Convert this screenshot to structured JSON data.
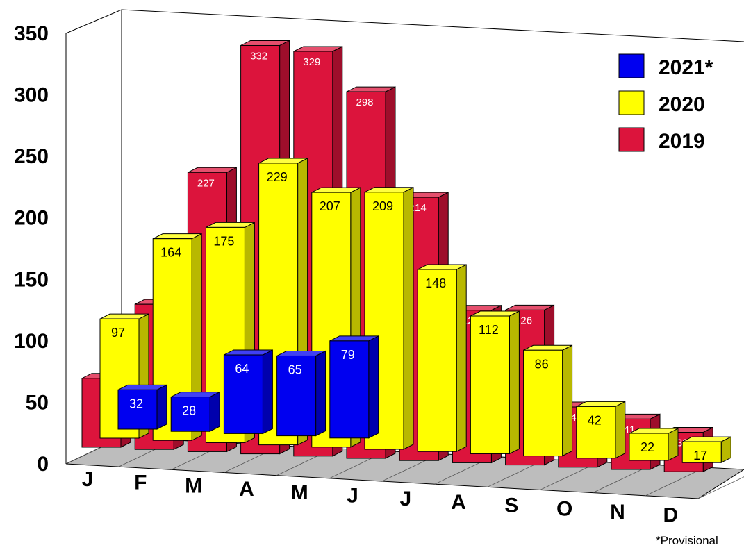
{
  "chart_data": {
    "type": "bar",
    "categories": [
      "J",
      "F",
      "M",
      "A",
      "M",
      "J",
      "J",
      "A",
      "S",
      "O",
      "N",
      "D"
    ],
    "series": [
      {
        "name": "2021*",
        "color": "#0000f0",
        "values": [
          32,
          28,
          64,
          65,
          79,
          null,
          null,
          null,
          null,
          null,
          null,
          null
        ]
      },
      {
        "name": "2020",
        "color": "#ffff00",
        "values": [
          97,
          164,
          175,
          229,
          207,
          209,
          148,
          112,
          86,
          42,
          22,
          17
        ]
      },
      {
        "name": "2019",
        "color": "#dc143c",
        "values": [
          56,
          118,
          227,
          332,
          329,
          298,
          214,
          124,
          126,
          49,
          41,
          32
        ]
      }
    ],
    "data_labels": {
      "2021*": [
        "32",
        "28",
        "64",
        "65",
        "79",
        "",
        "",
        "",
        "",
        "",
        "",
        ""
      ],
      "2020": [
        "97",
        "164",
        "175",
        "229",
        "207",
        "209",
        "148",
        "112",
        "86",
        "42",
        "22",
        "17"
      ],
      "2019": [
        "",
        "",
        "227",
        "332",
        "329",
        "298",
        "214",
        "124",
        "126",
        "49",
        "41",
        "32"
      ]
    },
    "yticks": [
      "0",
      "50",
      "100",
      "150",
      "200",
      "250",
      "300",
      "350"
    ],
    "ylim": [
      0,
      350
    ],
    "legend_placement": "top-right",
    "style": "3d-clustered-bar"
  },
  "footnote": "*Provisional"
}
